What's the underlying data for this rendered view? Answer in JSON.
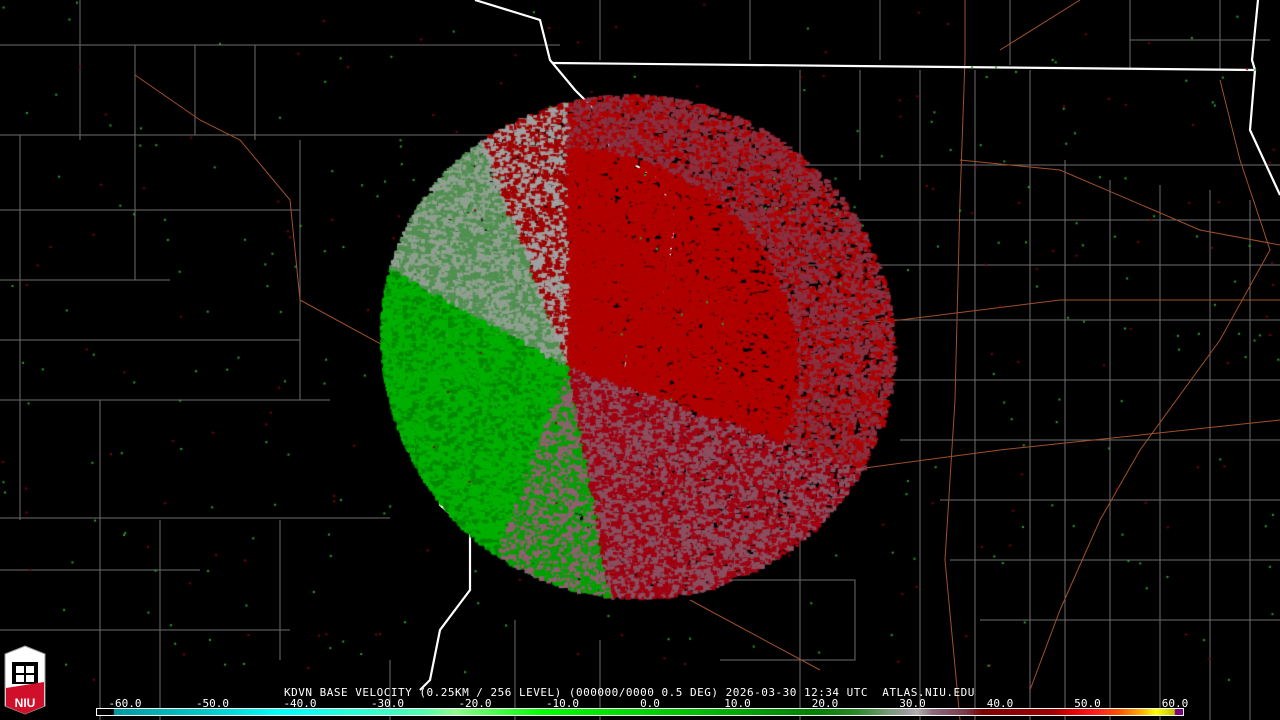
{
  "product": {
    "title": "KDVN BASE VELOCITY (0.25KM / 256 LEVEL) (000000/0000 0.5 DEG) 2026-03-30 12:34 UTC  ATLAS.NIU.EDU",
    "station": "KDVN",
    "product_type": "BASE VELOCITY",
    "tilt": "0.5 DEG",
    "timestamp": "2026-03-30 12:34 UTC",
    "source": "ATLAS.NIU.EDU"
  },
  "colorbar": {
    "ticks": [
      "-60.0",
      "-50.0",
      "-40.0",
      "-30.0",
      "-20.0",
      "-10.0",
      "0.0",
      "10.0",
      "20.0",
      "30.0",
      "40.0",
      "50.0",
      "60.0"
    ],
    "range": [
      -64,
      64
    ],
    "colors": {
      "inbound": "#00c000",
      "outbound": "#c00000",
      "near_zero": "#a0a0a0"
    }
  },
  "logo": {
    "text": "NIU",
    "color": "#d0102a"
  },
  "map": {
    "state_border_color": "#ffffff",
    "county_color": "#808080",
    "highway_color": "#c06030"
  }
}
